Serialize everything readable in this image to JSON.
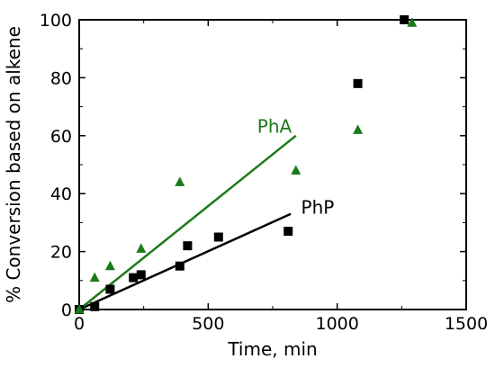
{
  "chart_data": {
    "type": "scatter",
    "xlabel": "Time, min",
    "ylabel": "% Conversion based on alkene",
    "xlim": [
      0,
      1500
    ],
    "ylim": [
      0,
      100
    ],
    "xticks": [
      0,
      500,
      1000,
      1500
    ],
    "yticks": [
      0,
      20,
      40,
      60,
      80,
      100
    ],
    "xtick_labels": [
      "0",
      "500",
      "1000",
      "1500"
    ],
    "ytick_labels": [
      "0",
      "20",
      "40",
      "60",
      "80",
      "100"
    ],
    "grid": false,
    "series": [
      {
        "name": "PhP",
        "marker": "square",
        "color": "#000000",
        "points": [
          {
            "x": 0,
            "y": 0
          },
          {
            "x": 60,
            "y": 1
          },
          {
            "x": 120,
            "y": 7
          },
          {
            "x": 210,
            "y": 11
          },
          {
            "x": 240,
            "y": 12
          },
          {
            "x": 390,
            "y": 15
          },
          {
            "x": 420,
            "y": 22
          },
          {
            "x": 540,
            "y": 25
          },
          {
            "x": 810,
            "y": 27
          },
          {
            "x": 1080,
            "y": 78
          },
          {
            "x": 1260,
            "y": 100
          }
        ],
        "fit_line": {
          "x": [
            0,
            820
          ],
          "y": [
            0,
            33
          ]
        }
      },
      {
        "name": "PhA",
        "marker": "triangle",
        "color": "#1a7a1a",
        "points": [
          {
            "x": 0,
            "y": 0
          },
          {
            "x": 60,
            "y": 11
          },
          {
            "x": 120,
            "y": 15
          },
          {
            "x": 240,
            "y": 21
          },
          {
            "x": 390,
            "y": 44
          },
          {
            "x": 840,
            "y": 48
          },
          {
            "x": 1080,
            "y": 62
          },
          {
            "x": 1290,
            "y": 99
          }
        ],
        "fit_line": {
          "x": [
            0,
            840
          ],
          "y": [
            0,
            60
          ]
        }
      }
    ],
    "annotations": [
      {
        "text": "PhA",
        "x": 690,
        "y": 61,
        "color": "#1a7a1a"
      },
      {
        "text": "PhP",
        "x": 860,
        "y": 33,
        "color": "#000000"
      }
    ]
  }
}
